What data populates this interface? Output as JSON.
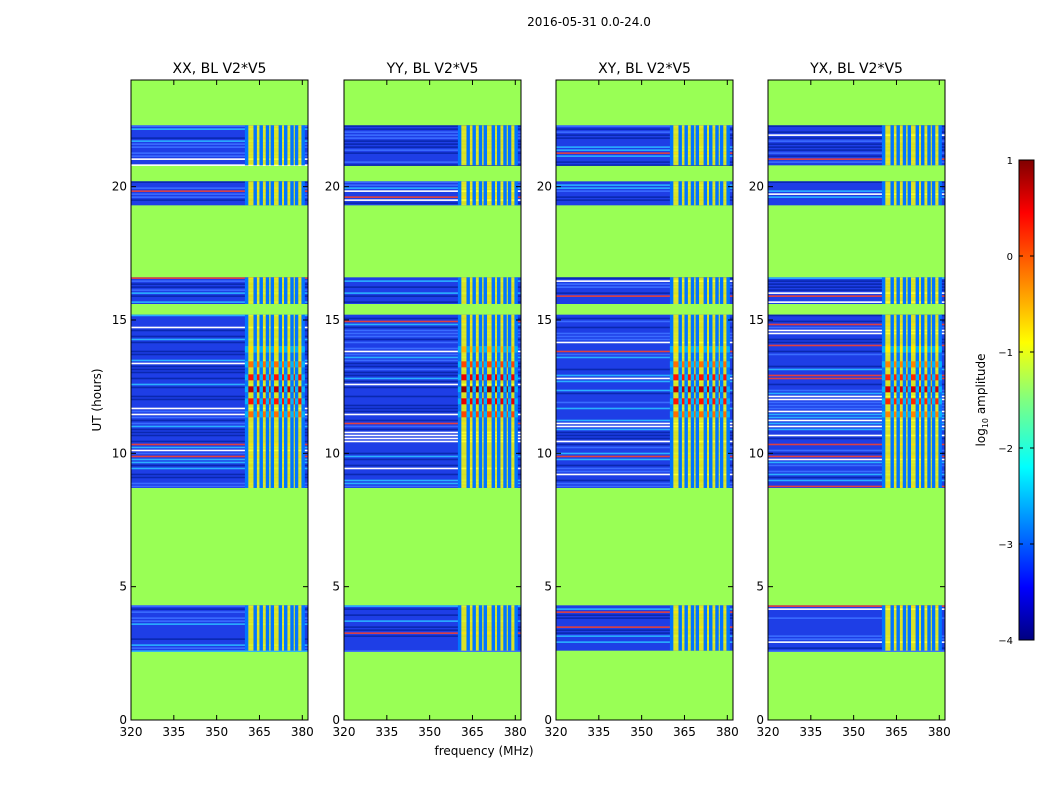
{
  "figure": {
    "suptitle": "2016-05-31 0.0-24.0",
    "xlabel": "frequency (MHz)",
    "ylabel": "UT (hours)"
  },
  "colorbar": {
    "label": "log10 amplitude",
    "label_main": "log",
    "label_sub": "10",
    "label_rest": " amplitude",
    "range": [
      -4,
      1
    ],
    "ticks": [
      1,
      0,
      -1,
      -2,
      -3,
      -4
    ],
    "tick_labels": [
      "1",
      "0",
      "−1",
      "−2",
      "−3",
      "−4"
    ]
  },
  "colors": {
    "background_masked": "#99ff55",
    "noise_dark": "#1a40e0",
    "flag_red": "#e04040"
  },
  "chart_data": [
    {
      "type": "heatmap",
      "title": "XX, BL V2*V5",
      "x_range": [
        320,
        382
      ],
      "y_range": [
        0,
        24
      ],
      "x_ticks": [
        320,
        335,
        350,
        365,
        380
      ],
      "y_ticks": [
        0,
        5,
        10,
        15,
        20
      ],
      "rfi_band_mhz": [
        360,
        380
      ],
      "peak_ut_hours": 12.4,
      "peak_log10_amplitude": 0.7
    },
    {
      "type": "heatmap",
      "title": "YY, BL V2*V5",
      "x_range": [
        320,
        382
      ],
      "y_range": [
        0,
        24
      ],
      "x_ticks": [
        320,
        335,
        350,
        365,
        380
      ],
      "y_ticks": [
        0,
        5,
        10,
        15,
        20
      ],
      "rfi_band_mhz": [
        360,
        380
      ],
      "peak_ut_hours": 12.4,
      "peak_log10_amplitude": 0.9
    },
    {
      "type": "heatmap",
      "title": "XY, BL V2*V5",
      "x_range": [
        320,
        382
      ],
      "y_range": [
        0,
        24
      ],
      "x_ticks": [
        320,
        335,
        350,
        365,
        380
      ],
      "y_ticks": [
        0,
        5,
        10,
        15,
        20
      ],
      "rfi_band_mhz": [
        360,
        380
      ],
      "peak_ut_hours": 12.4,
      "peak_log10_amplitude": 0.7
    },
    {
      "type": "heatmap",
      "title": "YX, BL V2*V5",
      "x_range": [
        320,
        382
      ],
      "y_range": [
        0,
        24
      ],
      "x_ticks": [
        320,
        335,
        350,
        365,
        380
      ],
      "y_ticks": [
        0,
        5,
        10,
        15,
        20
      ],
      "rfi_band_mhz": [
        360,
        380
      ],
      "peak_ut_hours": 12.4,
      "peak_log10_amplitude": 0.6
    }
  ],
  "data_segments_ut": [
    [
      2.6,
      4.3
    ],
    [
      8.7,
      15.2
    ],
    [
      15.6,
      16.6
    ],
    [
      19.3,
      20.2
    ],
    [
      20.8,
      22.3
    ]
  ],
  "rfi_channels_mhz": [
    360.5,
    363.5,
    365.6,
    367.8,
    369.5,
    372.3,
    374.2,
    376.4,
    378.0,
    380.3
  ]
}
